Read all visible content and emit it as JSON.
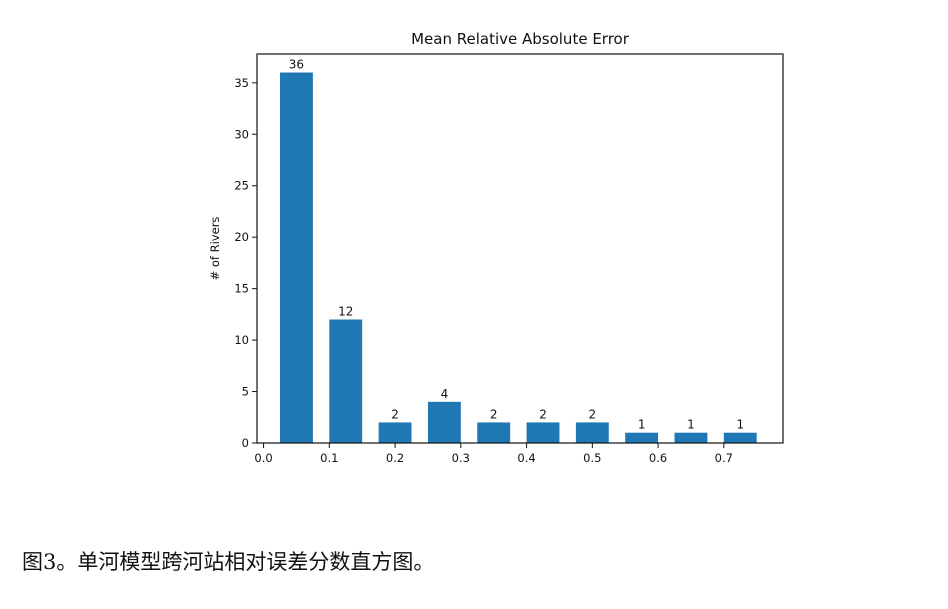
{
  "chart_data": {
    "type": "bar",
    "title": "Mean Relative Absolute Error",
    "xlabel": "",
    "ylabel": "# of Rivers",
    "bar_centers": [
      0.05,
      0.125,
      0.2,
      0.275,
      0.35,
      0.425,
      0.5,
      0.575,
      0.65,
      0.725
    ],
    "bar_width": 0.05,
    "values": [
      36,
      12,
      2,
      4,
      2,
      2,
      2,
      1,
      1,
      1
    ],
    "data_labels": [
      "36",
      "12",
      "2",
      "4",
      "2",
      "2",
      "2",
      "1",
      "1",
      "1"
    ],
    "xlim": [
      -0.01,
      0.79
    ],
    "ylim": [
      0,
      37.8
    ],
    "xticks": [
      0.0,
      0.1,
      0.2,
      0.3,
      0.4,
      0.5,
      0.6,
      0.7
    ],
    "xtick_labels": [
      "0.0",
      "0.1",
      "0.2",
      "0.3",
      "0.4",
      "0.5",
      "0.6",
      "0.7"
    ],
    "yticks": [
      0,
      5,
      10,
      15,
      20,
      25,
      30,
      35
    ],
    "ytick_labels": [
      "0",
      "5",
      "10",
      "15",
      "20",
      "25",
      "30",
      "35"
    ],
    "bar_color": "#1f77b4",
    "grid": false,
    "legend": "none"
  },
  "caption": "图3。单河模型跨河站相对误差分数直方图。"
}
